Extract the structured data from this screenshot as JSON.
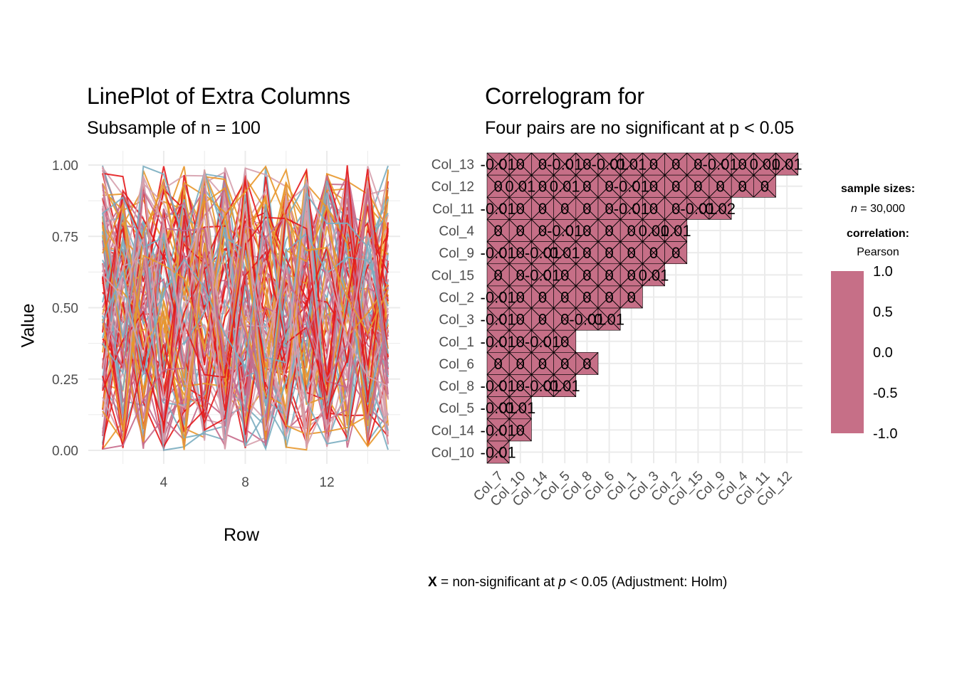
{
  "colors": {
    "grid": "#ebebeb",
    "tile": "#c66f87",
    "tile_border": "#000000",
    "series_palette": [
      "#e41a1c",
      "#e8972b",
      "#7aadc0",
      "#c6698a",
      "#d6a0ad"
    ]
  },
  "left_panel": {
    "title": "LinePlot of Extra Columns",
    "subtitle": "Subsample of n = 100",
    "xlabel": "Row",
    "ylabel": "Value"
  },
  "right_panel": {
    "title": "Correlogram for",
    "subtitle": "Four pairs are no significant at p < 0.05",
    "legend": {
      "sample_title": "sample sizes:",
      "sample_n": "n",
      "sample_value": " = 30,000",
      "corr_title": "correlation:",
      "corr_method": "Pearson",
      "ticks": [
        "1.0",
        "0.5",
        "0.0",
        "-0.5",
        "-1.0"
      ]
    },
    "caption": {
      "mark": "X",
      "text1": " = non-significant at ",
      "p": "p",
      "text2": " < 0.05 (Adjustment: Holm)"
    }
  },
  "chart_data": [
    {
      "type": "line",
      "title": "LinePlot of Extra Columns",
      "subtitle": "Subsample of n = 100",
      "xlabel": "Row",
      "ylabel": "Value",
      "xlim": [
        1,
        15
      ],
      "ylim": [
        0,
        1
      ],
      "x_ticks": [
        4,
        8,
        12
      ],
      "y_ticks": [
        "0.00",
        "0.25",
        "0.50",
        "0.75",
        "1.00"
      ],
      "series_count": 100,
      "note_values": "random uniform values in [0,1] for 100 series over rows 1-15",
      "legend": "none"
    },
    {
      "type": "heatmap",
      "title": "Correlogram for",
      "subtitle": "Four pairs are no significant at p < 0.05",
      "method": "Pearson",
      "sample_size": "30,000",
      "x_labels": [
        "Col_7",
        "Col_10",
        "Col_14",
        "Col_5",
        "Col_8",
        "Col_6",
        "Col_1",
        "Col_3",
        "Col_2",
        "Col_15",
        "Col_9",
        "Col_4",
        "Col_11",
        "Col_12"
      ],
      "y_labels": [
        "Col_13",
        "Col_12",
        "Col_11",
        "Col_4",
        "Col_9",
        "Col_15",
        "Col_2",
        "Col_3",
        "Col_1",
        "Col_6",
        "Col_8",
        "Col_5",
        "Col_14",
        "Col_10"
      ],
      "color_range": [
        -1,
        1
      ],
      "cells": [
        [
          "-0.01",
          "0",
          "0",
          "-0.01",
          "0",
          "-0.01",
          "0.01",
          "0",
          "0",
          "0",
          "-0.01",
          "0",
          "0.01",
          "0.01"
        ],
        [
          "0",
          "0.01",
          "0",
          "0.01",
          "0",
          "0",
          "-0.01",
          "0",
          "0",
          "0",
          "0",
          "0",
          "0"
        ],
        [
          "-0.01",
          "0",
          "0",
          "0",
          "0",
          "0",
          "-0.01",
          "0",
          "0",
          "-0.01",
          "0.02"
        ],
        [
          "0",
          "0",
          "0",
          "-0.01",
          "0",
          "0",
          "0",
          "0.01",
          "0.01"
        ],
        [
          "-0.01",
          "0",
          "-0.01",
          "0.01",
          "0",
          "0",
          "0",
          "0",
          "0"
        ],
        [
          "0",
          "0",
          "-0.01",
          "0",
          "0",
          "0",
          "0",
          "0.01"
        ],
        [
          "-0.01",
          "0",
          "0",
          "0",
          "0",
          "0",
          "0"
        ],
        [
          "-0.01",
          "0",
          "0",
          "0",
          "-0.01",
          "0.01"
        ],
        [
          "-0.01",
          "0",
          "-0.01",
          "0"
        ],
        [
          "0",
          "0",
          "0",
          "0",
          "0"
        ],
        [
          "-0.01",
          "0",
          "-0.01",
          "0.01"
        ],
        [
          "-0.01",
          "0.01"
        ],
        [
          "-0.01",
          "0"
        ],
        [
          "-0.01"
        ]
      ],
      "caption": "X = non-significant at p < 0.05 (Adjustment: Holm)"
    }
  ]
}
